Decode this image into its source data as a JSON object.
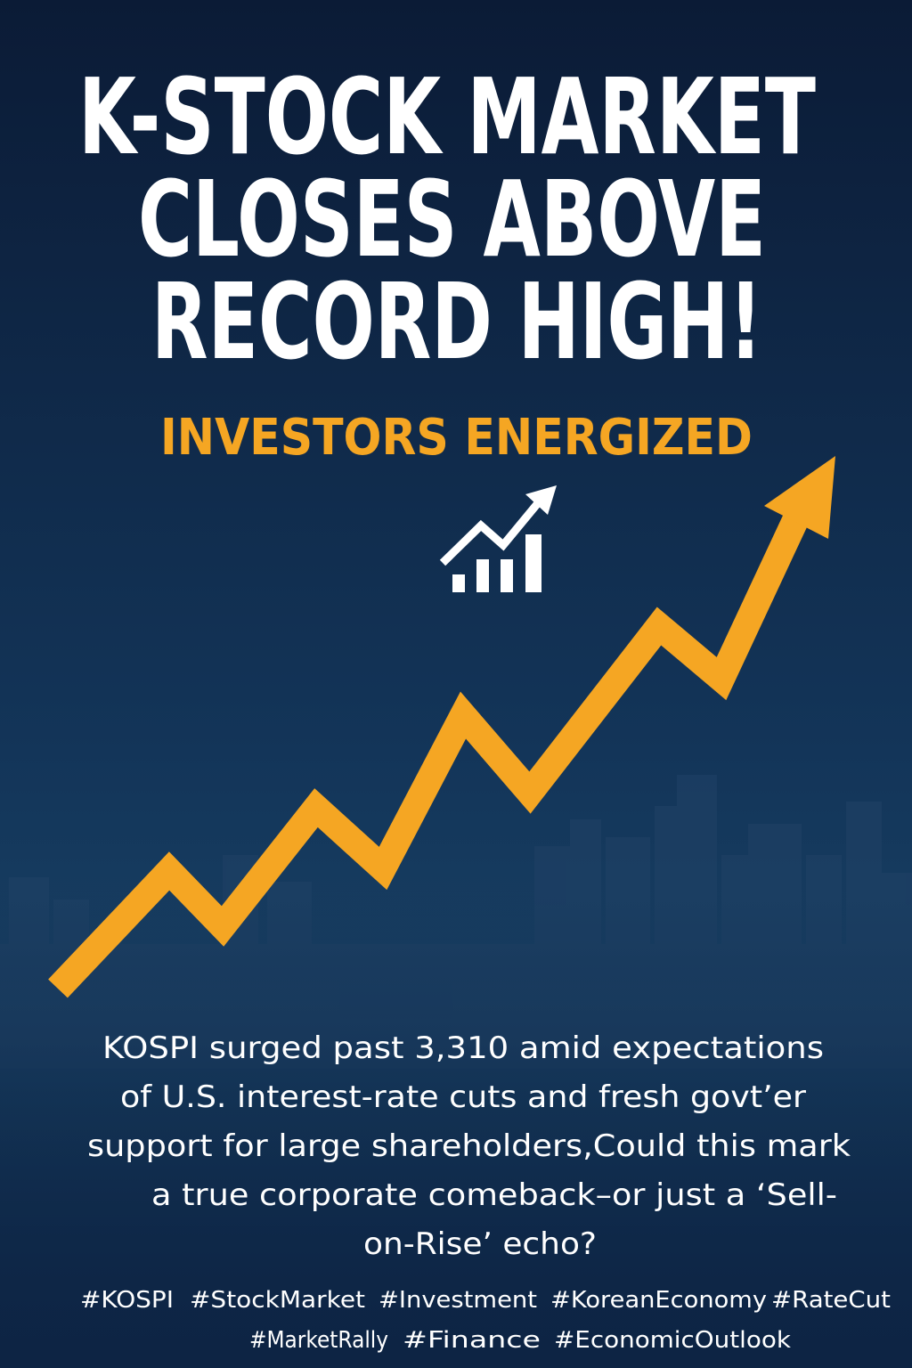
{
  "headline": {
    "lines": [
      "K-STOCK MARKET",
      "CLOSES ABOVE",
      "RECORD HIGH!"
    ]
  },
  "subtitle": "INVESTORS ENERGIZED",
  "body": {
    "lines": [
      "KOSPI surged past 3,310 amid expectations",
      "of U.S. interest-rate cuts and fresh govt’er",
      "support for large shareholders,Could this mark",
      "a true corporate comeback–or just a ‘Sell-",
      "on-Rise’ echo?"
    ]
  },
  "hashtags": {
    "lines": [
      [
        "#KOSPI",
        "#StockMarket",
        "#Investment",
        "#KoreanEconomy",
        "#RateCut"
      ],
      [
        "#MarketRally",
        "#Finance",
        "#EconomicOutlook"
      ]
    ]
  }
}
